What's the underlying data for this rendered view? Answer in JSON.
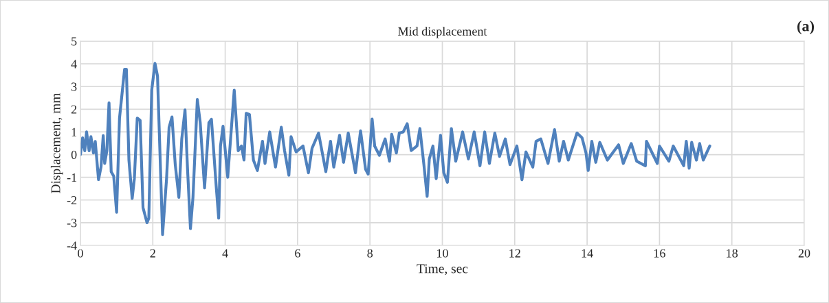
{
  "chart_data": {
    "type": "line",
    "title": "Mid displacement",
    "xlabel": "Time, sec",
    "ylabel": "Displacement, mm",
    "annotations": [
      "(a)"
    ],
    "xlim": [
      0,
      20
    ],
    "xticks": [
      0,
      2,
      4,
      6,
      8,
      10,
      12,
      14,
      16,
      18,
      20
    ],
    "ylim": [
      -4,
      5
    ],
    "yticks": [
      -4,
      -3,
      -2,
      -1,
      0,
      1,
      2,
      3,
      4,
      5
    ],
    "grid": true,
    "legend": false,
    "marker": "none",
    "line_style": "solid",
    "series": [
      {
        "color": "#4f81bd",
        "x": [
          0,
          0.06,
          0.12,
          0.17,
          0.24,
          0.29,
          0.36,
          0.41,
          0.5,
          0.57,
          0.63,
          0.67,
          0.73,
          0.79,
          0.85,
          0.92,
          1.0,
          1.08,
          1.14,
          1.22,
          1.27,
          1.34,
          1.43,
          1.49,
          1.57,
          1.65,
          1.73,
          1.84,
          1.89,
          1.97,
          2.06,
          2.13,
          2.27,
          2.38,
          2.45,
          2.53,
          2.62,
          2.72,
          2.8,
          2.89,
          2.96,
          3.04,
          3.11,
          3.23,
          3.31,
          3.43,
          3.55,
          3.62,
          3.75,
          3.82,
          3.87,
          3.94,
          4.07,
          4.25,
          4.36,
          4.45,
          4.52,
          4.58,
          4.67,
          4.78,
          4.89,
          5.03,
          5.1,
          5.23,
          5.39,
          5.55,
          5.64,
          5.76,
          5.82,
          5.96,
          6.15,
          6.3,
          6.4,
          6.58,
          6.69,
          6.78,
          6.91,
          7.0,
          7.16,
          7.27,
          7.4,
          7.6,
          7.74,
          7.88,
          7.95,
          8.06,
          8.13,
          8.26,
          8.42,
          8.54,
          8.6,
          8.73,
          8.81,
          8.92,
          9.03,
          9.14,
          9.3,
          9.38,
          9.49,
          9.58,
          9.64,
          9.74,
          9.83,
          9.95,
          10.04,
          10.14,
          10.25,
          10.37,
          10.56,
          10.72,
          10.88,
          11.04,
          11.17,
          11.3,
          11.45,
          11.58,
          11.74,
          11.87,
          12.06,
          12.2,
          12.31,
          12.5,
          12.59,
          12.72,
          12.92,
          13.1,
          13.23,
          13.35,
          13.48,
          13.72,
          13.86,
          13.97,
          14.03,
          14.13,
          14.24,
          14.35,
          14.56,
          14.87,
          15.0,
          15.22,
          15.37,
          15.61,
          15.64,
          15.94,
          16.0,
          16.26,
          16.38,
          16.67,
          16.74,
          16.82,
          16.89,
          17.02,
          17.11,
          17.21,
          17.39
        ],
        "values": [
          0,
          0.74,
          0.17,
          1.0,
          0.17,
          0.79,
          0.07,
          0.58,
          -1.1,
          -0.54,
          0.84,
          -0.39,
          0.17,
          2.28,
          -0.75,
          -0.95,
          -2.54,
          1.61,
          2.53,
          3.76,
          3.76,
          -0.24,
          -1.93,
          -1.06,
          1.61,
          1.51,
          -2.34,
          -3.0,
          -2.8,
          2.84,
          4.02,
          3.46,
          -3.52,
          -1.06,
          1.2,
          1.66,
          -0.44,
          -1.88,
          0.69,
          1.97,
          -0.65,
          -3.26,
          -1.88,
          2.43,
          1.41,
          -1.47,
          1.41,
          1.56,
          -1.36,
          -2.8,
          0.38,
          1.25,
          -1.0,
          2.84,
          0.17,
          0.38,
          -0.24,
          1.82,
          1.77,
          -0.24,
          -0.7,
          0.59,
          -0.39,
          1.0,
          -0.55,
          1.21,
          0.18,
          -0.91,
          0.79,
          0.12,
          0.38,
          -0.8,
          0.28,
          0.95,
          0.02,
          -0.75,
          0.59,
          -0.55,
          0.85,
          -0.34,
          0.95,
          -0.8,
          1.05,
          -0.65,
          -0.86,
          1.57,
          0.38,
          -0.03,
          0.69,
          -0.29,
          0.9,
          0.07,
          0.95,
          1.0,
          1.36,
          0.18,
          0.38,
          1.15,
          -0.44,
          -1.84,
          -0.19,
          0.38,
          -1.06,
          0.85,
          -0.8,
          -1.22,
          1.15,
          -0.29,
          1.0,
          -0.19,
          1.0,
          -0.49,
          1.0,
          -0.39,
          0.95,
          -0.08,
          0.69,
          -0.44,
          0.38,
          -1.11,
          0.12,
          -0.55,
          0.59,
          0.69,
          -0.39,
          1.1,
          -0.29,
          0.59,
          -0.24,
          0.95,
          0.74,
          0.07,
          -0.7,
          0.59,
          -0.34,
          0.54,
          -0.24,
          0.43,
          -0.39,
          0.49,
          -0.29,
          -0.49,
          0.59,
          -0.39,
          0.38,
          -0.29,
          0.38,
          -0.49,
          0.59,
          -0.6,
          0.54,
          -0.24,
          0.49,
          -0.24,
          0.38
        ]
      }
    ]
  }
}
